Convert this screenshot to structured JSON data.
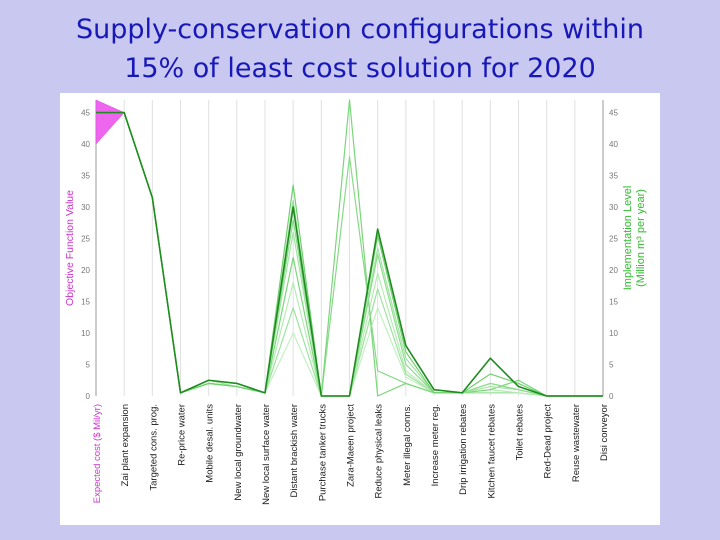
{
  "title_lines": [
    "Supply-conservation configurations within",
    "15% of least cost solution for 2020"
  ],
  "chart_data": {
    "type": "line",
    "title": "Supply-conservation configurations within 15% of least cost solution for 2020",
    "left_axis": {
      "label": "Objective Function Value",
      "ticks": [
        "45",
        "40",
        "35",
        "30",
        "25",
        "20",
        "15",
        "10",
        "5",
        "0"
      ],
      "color": "#cc33cc"
    },
    "right_axis": {
      "label_lines": [
        "Implementation Level",
        "(Million m³ per year)"
      ],
      "ticks": [
        "45",
        "40",
        "35",
        "30",
        "25",
        "20",
        "15",
        "10",
        "5",
        "0"
      ],
      "color": "#33bb33"
    },
    "ylim": [
      0,
      47
    ],
    "categories": [
      "Expected cost ($ Mil/yr)",
      "Zai plant expansion",
      "Targeted cons. prog.",
      "Re-price water",
      "Mobile desal. units",
      "New local groundwater",
      "New local surface water",
      "Distant brackish water",
      "Purchase tanker trucks",
      "Zara-Maeen project",
      "Reduce physical leaks",
      "Meter illegal conns.",
      "Increase meter reg.",
      "Drip irrigation rebates",
      "Kitchen faucet rebates",
      "Toilet rebates",
      "Red-Dead project",
      "Reuse wastewater",
      "Disi conveyor"
    ],
    "objective_range": [
      40,
      47
    ],
    "series": [
      {
        "values": [
          45,
          45,
          31.5,
          0.5,
          2.5,
          2,
          0.5,
          30,
          0,
          0,
          26.5,
          8,
          1,
          0.5,
          6,
          1.5,
          0,
          0,
          0
        ],
        "color": "#1e8c1e"
      },
      {
        "values": [
          45,
          45,
          31.5,
          0.5,
          2,
          1.5,
          0.5,
          33.5,
          0,
          0,
          25.5,
          7,
          0.5,
          0.5,
          3.5,
          2,
          0,
          0,
          0
        ],
        "color": "#6fcf6f"
      },
      {
        "values": [
          45,
          45,
          31.5,
          0.5,
          2,
          1.5,
          0.5,
          31,
          0,
          0,
          22.5,
          5,
          0.5,
          0.5,
          2,
          1,
          0,
          0,
          0
        ],
        "color": "#8fdc8f"
      },
      {
        "values": [
          45,
          45,
          31.5,
          0.5,
          2.5,
          1.5,
          0.5,
          26,
          0,
          0,
          23.5,
          6,
          0.5,
          0.5,
          1.5,
          1,
          0,
          0,
          0
        ],
        "color": "#a4e4a4"
      },
      {
        "values": [
          45,
          45,
          31.5,
          0.5,
          2,
          1.5,
          0.5,
          22,
          0,
          47,
          0,
          2,
          0.5,
          0.5,
          1,
          2.5,
          0,
          0,
          0
        ],
        "color": "#7bd67b"
      },
      {
        "values": [
          45,
          45,
          31.5,
          0.5,
          2,
          1.5,
          0.5,
          18,
          0,
          0,
          19.5,
          4,
          0.5,
          0.5,
          1,
          0.5,
          0,
          0,
          0
        ],
        "color": "#b6ebb6"
      },
      {
        "values": [
          45,
          45,
          31.5,
          0.5,
          2,
          1.5,
          0.5,
          14,
          0,
          0,
          17,
          3.5,
          0.5,
          0.5,
          0.5,
          0.5,
          0,
          0,
          0
        ],
        "color": "#9ee29e"
      },
      {
        "values": [
          45,
          45,
          31.5,
          0.5,
          2,
          1.5,
          0.5,
          10,
          0,
          0,
          14,
          3,
          0.5,
          0.5,
          0.5,
          0.5,
          0,
          0,
          0
        ],
        "color": "#c2f0c2"
      },
      {
        "values": [
          45,
          45,
          31.5,
          0.5,
          2,
          1.5,
          0.5,
          28,
          0,
          38,
          4,
          2,
          0.5,
          0.5,
          2,
          1,
          0,
          0,
          0
        ],
        "color": "#88da88"
      }
    ]
  }
}
